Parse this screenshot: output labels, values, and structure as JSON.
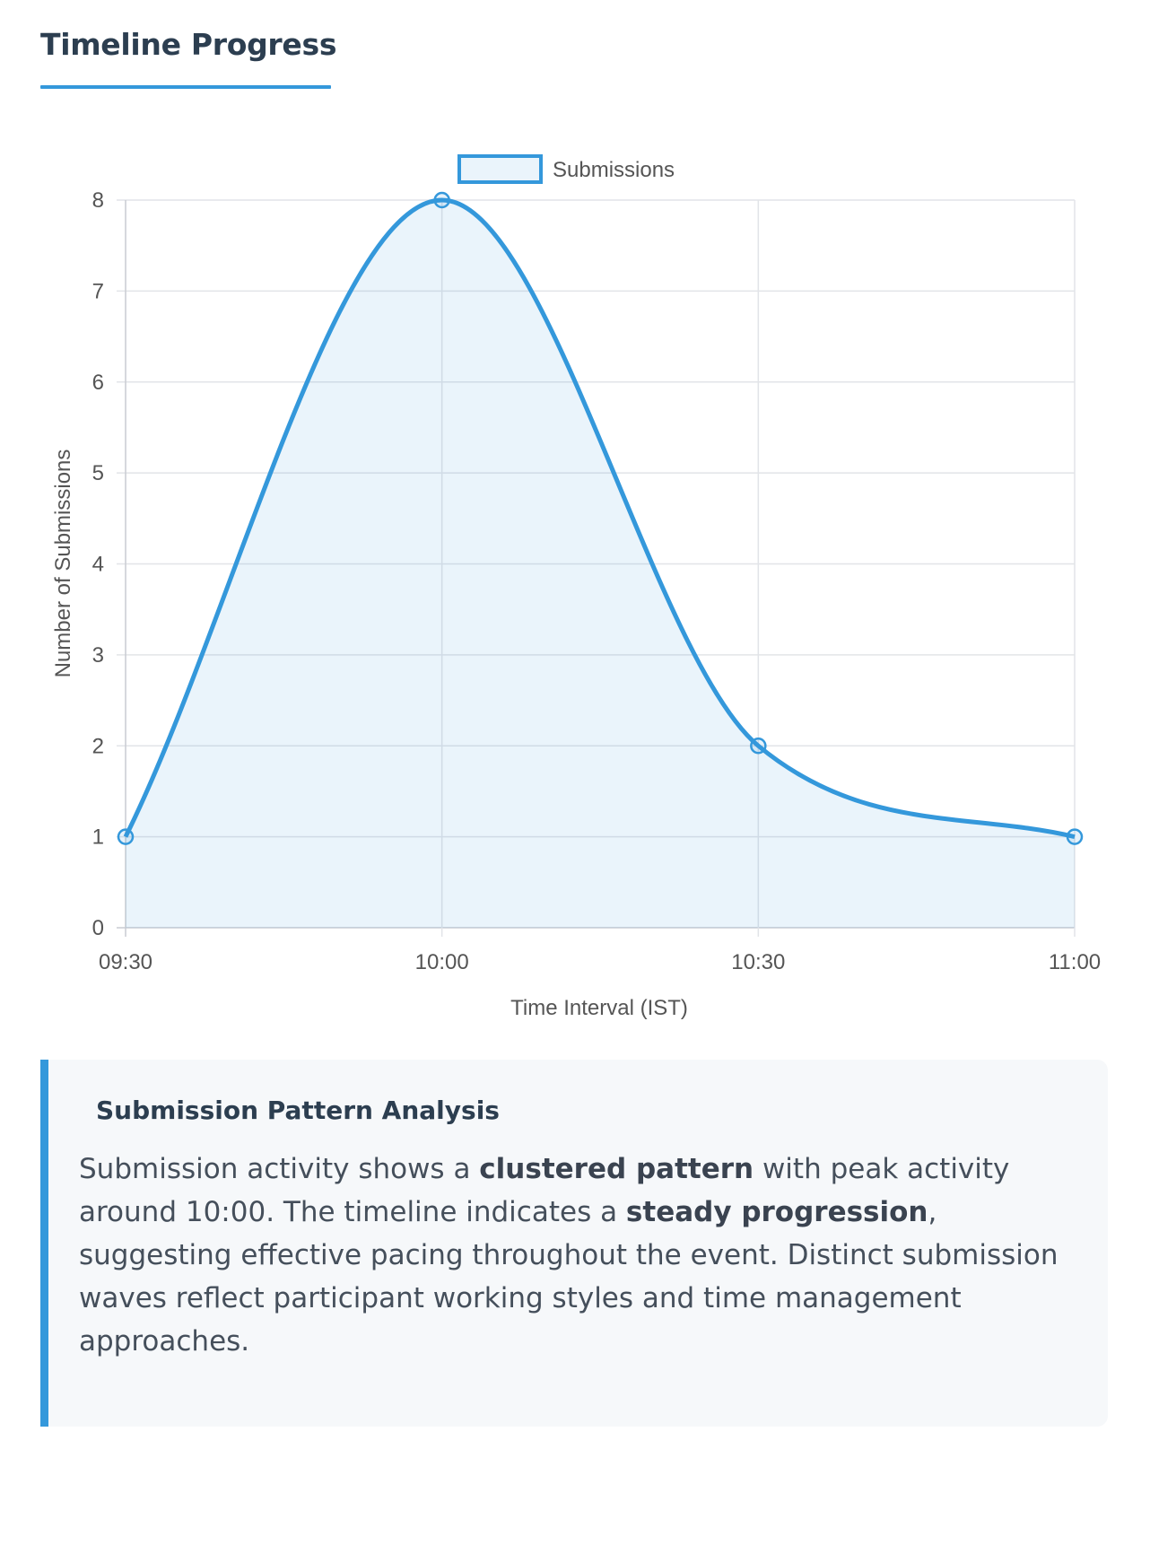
{
  "section": {
    "title": "Timeline Progress"
  },
  "colors": {
    "accent": "#3498db",
    "fill": "rgba(52,152,219,0.10)",
    "grid": "#e2e4e8",
    "axis_text": "#555555"
  },
  "chart_data": {
    "type": "line",
    "legend_label": "Submissions",
    "legend_position": "top-center",
    "categories": [
      "09:30",
      "10:00",
      "10:30",
      "11:00"
    ],
    "values": [
      1,
      8,
      2,
      1
    ],
    "xlabel": "Time Interval (IST)",
    "ylabel": "Number of Submissions",
    "ylim": [
      0,
      8
    ],
    "yticks": [
      "0",
      "1",
      "2",
      "3",
      "4",
      "5",
      "6",
      "7",
      "8"
    ],
    "fill": true,
    "smooth": true,
    "grid": true
  },
  "analysis": {
    "title": "Submission Pattern Analysis",
    "text_1": "Submission activity shows a ",
    "bold_1": "clustered pattern",
    "text_2": " with peak activity around 10:00. The timeline indicates a ",
    "bold_2": "steady progression",
    "text_3": ", suggesting effective pacing throughout the event. Distinct submission waves reflect participant working styles and time management approaches."
  }
}
